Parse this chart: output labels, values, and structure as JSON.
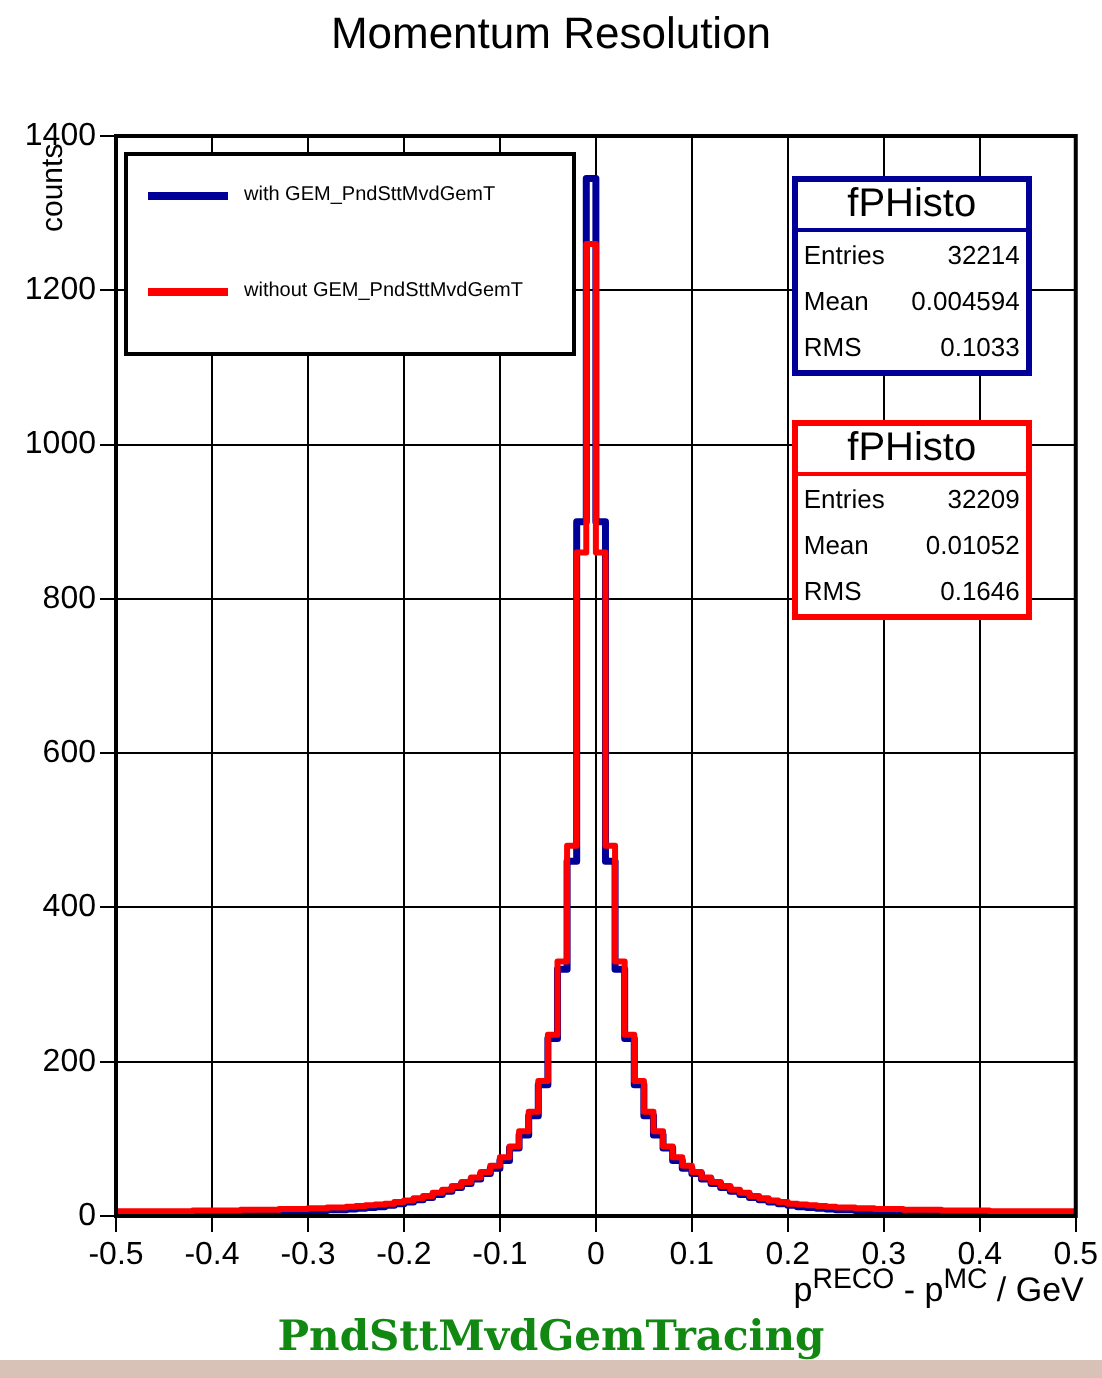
{
  "chart_data": {
    "type": "histogram",
    "title": "Momentum Resolution",
    "xlabel": "p$^{RECO}$ - p$^{MC}$ / GeV",
    "ylabel": "counts",
    "bins": [
      -0.5,
      -0.49,
      -0.48,
      -0.47,
      -0.46,
      -0.45,
      -0.44,
      -0.43,
      -0.42,
      -0.41,
      -0.4,
      -0.39,
      -0.38,
      -0.37,
      -0.36,
      -0.35,
      -0.34,
      -0.33,
      -0.32,
      -0.31,
      -0.3,
      -0.29,
      -0.28,
      -0.27,
      -0.26,
      -0.25,
      -0.24,
      -0.23,
      -0.22,
      -0.21,
      -0.2,
      -0.19,
      -0.18,
      -0.17,
      -0.16,
      -0.15,
      -0.14,
      -0.13,
      -0.12,
      -0.11,
      -0.1,
      -0.09,
      -0.08,
      -0.07,
      -0.06,
      -0.05,
      -0.04,
      -0.03,
      -0.02,
      -0.01,
      0,
      0.01,
      0.02,
      0.03,
      0.04,
      0.05,
      0.06,
      0.07,
      0.08,
      0.09,
      0.1,
      0.11,
      0.12,
      0.13,
      0.14,
      0.15,
      0.16,
      0.17,
      0.18,
      0.19,
      0.2,
      0.21,
      0.22,
      0.23,
      0.24,
      0.25,
      0.26,
      0.27,
      0.28,
      0.29,
      0.3,
      0.31,
      0.32,
      0.33,
      0.34,
      0.35,
      0.36,
      0.37,
      0.38,
      0.39,
      0.4,
      0.41,
      0.42,
      0.43,
      0.44,
      0.45,
      0.46,
      0.47,
      0.48,
      0.49,
      0.5
    ],
    "series": [
      {
        "name": "with GEM_PndSttMvdGemT",
        "color": "#000099",
        "values": [
          3,
          3,
          3,
          3,
          3,
          3,
          3,
          3,
          4,
          4,
          4,
          4,
          4,
          4,
          5,
          5,
          5,
          5,
          6,
          6,
          7,
          7,
          8,
          8,
          9,
          10,
          11,
          12,
          14,
          16,
          18,
          21,
          24,
          28,
          32,
          37,
          42,
          48,
          55,
          62,
          72,
          88,
          105,
          130,
          170,
          230,
          320,
          460,
          900,
          1345,
          900,
          460,
          320,
          230,
          170,
          130,
          105,
          88,
          72,
          62,
          55,
          48,
          42,
          37,
          32,
          28,
          24,
          21,
          18,
          16,
          14,
          12,
          11,
          10,
          9,
          8,
          8,
          7,
          7,
          6,
          6,
          5,
          5,
          5,
          5,
          4,
          4,
          4,
          4,
          4,
          4,
          3,
          3,
          3,
          3,
          3,
          3,
          3,
          3,
          3
        ]
      },
      {
        "name": "without GEM_PndSttMvdGemT",
        "color": "#ff0000",
        "values": [
          6,
          6,
          6,
          6,
          6,
          6,
          6,
          6,
          7,
          7,
          7,
          7,
          7,
          8,
          8,
          8,
          8,
          9,
          9,
          9,
          10,
          10,
          11,
          11,
          12,
          13,
          14,
          15,
          16,
          18,
          20,
          23,
          26,
          30,
          34,
          39,
          44,
          50,
          57,
          65,
          76,
          90,
          110,
          135,
          175,
          235,
          330,
          480,
          860,
          1260,
          860,
          480,
          330,
          235,
          175,
          135,
          110,
          90,
          76,
          65,
          57,
          50,
          44,
          39,
          34,
          30,
          26,
          23,
          20,
          18,
          16,
          15,
          14,
          13,
          12,
          11,
          11,
          10,
          10,
          9,
          9,
          9,
          8,
          8,
          8,
          8,
          7,
          7,
          7,
          7,
          7,
          6,
          6,
          6,
          6,
          6,
          6,
          6,
          6,
          6
        ]
      }
    ],
    "xlim": [
      -0.5,
      0.5
    ],
    "xticks": [
      -0.5,
      -0.4,
      -0.3,
      -0.2,
      -0.1,
      0,
      0.1,
      0.2,
      0.3,
      0.4,
      0.5
    ],
    "ylim": [
      0,
      1400
    ],
    "yticks": [
      0,
      200,
      400,
      600,
      800,
      1000,
      1200,
      1400
    ],
    "grid": true,
    "legend": "top left",
    "annotations": [
      "fPHisto",
      "Entries",
      "32214",
      "Mean",
      "0.004594",
      "RMS",
      "0.1033",
      "fPHisto",
      "Entries",
      "32209",
      "Mean",
      "0.01052",
      "RMS",
      "0.1646",
      "PndSttMvdGemTracing"
    ]
  }
}
